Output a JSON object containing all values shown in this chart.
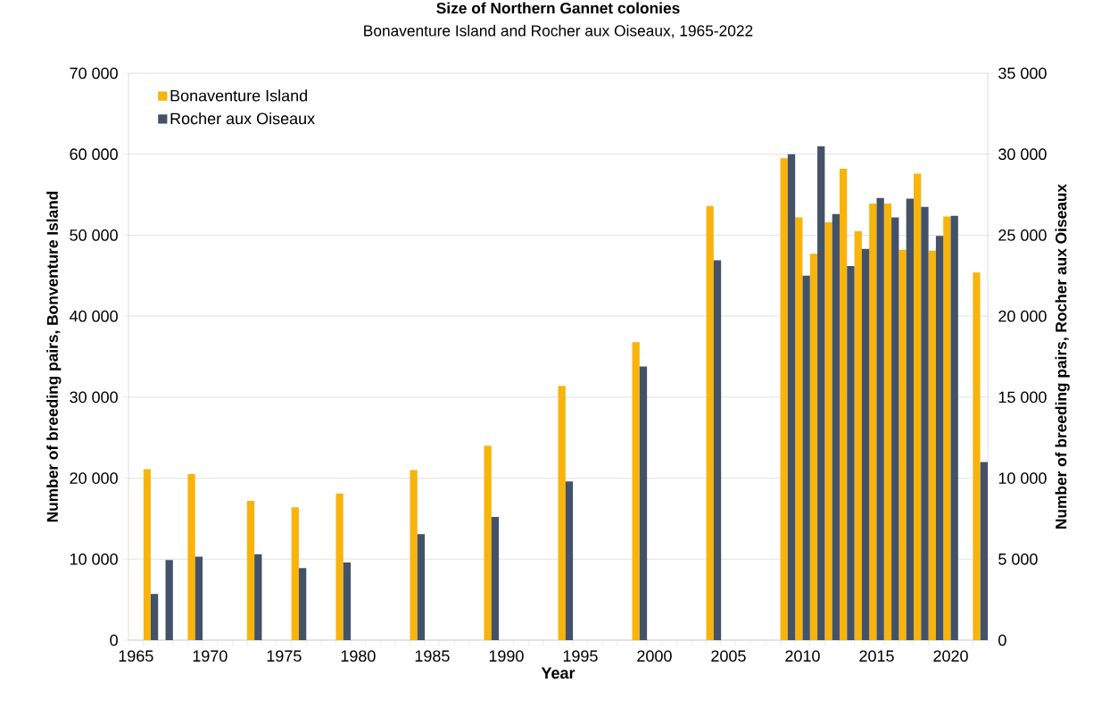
{
  "chart_data": {
    "type": "bar",
    "title": "Size of Northern Gannet colonies",
    "subtitle": "Bonaventure Island and Rocher aux Oiseaux, 1965-2022",
    "xlabel": "Year",
    "ylabel": "Number of breeding pairs, Bonventure Island",
    "y2label": "Number of breeding pairs, Rocher aux Oiseaux",
    "categories": [
      "1965",
      null,
      null,
      null,
      null,
      "1970",
      null,
      null,
      null,
      null,
      "1975",
      null,
      null,
      null,
      null,
      "1980",
      null,
      null,
      null,
      null,
      "1985",
      null,
      null,
      null,
      null,
      "1990",
      null,
      null,
      null,
      null,
      "1995",
      null,
      null,
      null,
      null,
      "2000",
      null,
      null,
      null,
      null,
      "2005",
      null,
      null,
      null,
      null,
      "2010",
      null,
      null,
      null,
      null,
      "2015",
      null,
      null,
      null,
      null,
      "2020",
      null,
      null
    ],
    "series": [
      {
        "name": "Bonaventure Island",
        "color": "#f8b40c",
        "axis": "y",
        "values": [
          null,
          21100,
          null,
          null,
          20500,
          null,
          null,
          null,
          17200,
          null,
          null,
          16400,
          null,
          null,
          18100,
          null,
          null,
          null,
          null,
          21000,
          null,
          null,
          null,
          null,
          24000,
          null,
          null,
          null,
          null,
          31400,
          null,
          null,
          null,
          null,
          36800,
          null,
          null,
          null,
          null,
          53600,
          null,
          null,
          null,
          null,
          59500,
          52200,
          47700,
          51600,
          58200,
          50500,
          53900,
          53900,
          48200,
          57600,
          48100,
          52300,
          null,
          45400
        ]
      },
      {
        "name": "Rocher aux Oiseaux",
        "color": "#435269",
        "axis": "y2",
        "values": [
          null,
          2850,
          4950,
          null,
          5150,
          null,
          null,
          null,
          5300,
          null,
          null,
          4450,
          null,
          null,
          4800,
          null,
          null,
          null,
          null,
          6550,
          null,
          null,
          null,
          null,
          7600,
          null,
          null,
          null,
          null,
          9800,
          null,
          null,
          null,
          null,
          16900,
          null,
          null,
          null,
          null,
          23450,
          null,
          null,
          null,
          null,
          30000,
          22500,
          30500,
          26300,
          23100,
          24150,
          27300,
          26100,
          27250,
          26750,
          24950,
          26200,
          null,
          11000
        ]
      }
    ],
    "ylim": [
      0,
      70000
    ],
    "yticks": [
      {
        "value": 0,
        "label": "0"
      },
      {
        "value": 10000,
        "label": "10 000"
      },
      {
        "value": 20000,
        "label": "20 000"
      },
      {
        "value": 30000,
        "label": "30 000"
      },
      {
        "value": 40000,
        "label": "40 000"
      },
      {
        "value": 50000,
        "label": "50 000"
      },
      {
        "value": 60000,
        "label": "60 000"
      },
      {
        "value": 70000,
        "label": "70 000"
      }
    ],
    "y2lim": [
      0,
      35000
    ],
    "y2ticks": [
      {
        "value": 0,
        "label": "0"
      },
      {
        "value": 5000,
        "label": "5 000"
      },
      {
        "value": 10000,
        "label": "10 000"
      },
      {
        "value": 15000,
        "label": "15 000"
      },
      {
        "value": 20000,
        "label": "20 000"
      },
      {
        "value": 25000,
        "label": "25 000"
      },
      {
        "value": 30000,
        "label": "30 000"
      },
      {
        "value": 35000,
        "label": "35 000"
      }
    ],
    "grid": "y",
    "legend": "top left"
  }
}
